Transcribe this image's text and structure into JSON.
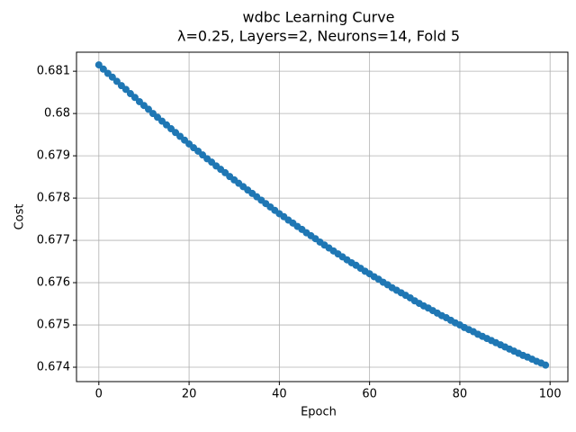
{
  "chart_data": {
    "type": "line",
    "title": "wdbc Learning Curve",
    "subtitle": "λ=0.25, Layers=2, Neurons=14, Fold 5",
    "x_label": "Epoch",
    "y_label": "Cost",
    "x": [
      0,
      1,
      2,
      3,
      4,
      5,
      6,
      7,
      8,
      9,
      10,
      11,
      12,
      13,
      14,
      15,
      16,
      17,
      18,
      19,
      20,
      21,
      22,
      23,
      24,
      25,
      26,
      27,
      28,
      29,
      30,
      31,
      32,
      33,
      34,
      35,
      36,
      37,
      38,
      39,
      40,
      41,
      42,
      43,
      44,
      45,
      46,
      47,
      48,
      49,
      50,
      51,
      52,
      53,
      54,
      55,
      56,
      57,
      58,
      59,
      60,
      61,
      62,
      63,
      64,
      65,
      66,
      67,
      68,
      69,
      70,
      71,
      72,
      73,
      74,
      75,
      76,
      77,
      78,
      79,
      80,
      81,
      82,
      83,
      84,
      85,
      86,
      87,
      88,
      89,
      90,
      91,
      92,
      93,
      94,
      95,
      96,
      97,
      98,
      99
    ],
    "series": [
      {
        "color": "#1f77b4",
        "values": [
          0.68115,
          0.68105,
          0.68095,
          0.68086,
          0.68076,
          0.68066,
          0.68057,
          0.68047,
          0.68038,
          0.68028,
          0.68019,
          0.6801,
          0.68,
          0.67991,
          0.67982,
          0.67973,
          0.67964,
          0.67955,
          0.67946,
          0.67937,
          0.67928,
          0.67919,
          0.67911,
          0.67902,
          0.67893,
          0.67885,
          0.67876,
          0.67868,
          0.6786,
          0.67851,
          0.67843,
          0.67835,
          0.67827,
          0.67819,
          0.67811,
          0.67803,
          0.67795,
          0.67787,
          0.67779,
          0.67771,
          0.67763,
          0.67756,
          0.67748,
          0.67741,
          0.67733,
          0.67726,
          0.67718,
          0.67711,
          0.67704,
          0.67696,
          0.67689,
          0.67682,
          0.67675,
          0.67668,
          0.67661,
          0.67654,
          0.67647,
          0.67641,
          0.67634,
          0.67627,
          0.67621,
          0.67614,
          0.67608,
          0.67601,
          0.67595,
          0.67588,
          0.67582,
          0.67576,
          0.6757,
          0.67564,
          0.67557,
          0.67551,
          0.67545,
          0.6754,
          0.67534,
          0.67528,
          0.67522,
          0.67517,
          0.67511,
          0.67505,
          0.675,
          0.67494,
          0.67489,
          0.67484,
          0.67478,
          0.67473,
          0.67468,
          0.67463,
          0.67458,
          0.67453,
          0.67448,
          0.67443,
          0.67438,
          0.67433,
          0.67428,
          0.67424,
          0.67419,
          0.67414,
          0.6741,
          0.67405
        ]
      }
    ],
    "xlim": [
      -4.95,
      103.95
    ],
    "xticks": [
      0,
      20,
      40,
      60,
      80,
      100
    ],
    "ylim": [
      0.67366,
      0.68145
    ],
    "yticks": [
      0.674,
      0.675,
      0.676,
      0.677,
      0.678,
      0.679,
      0.68,
      0.681
    ],
    "grid": true
  }
}
